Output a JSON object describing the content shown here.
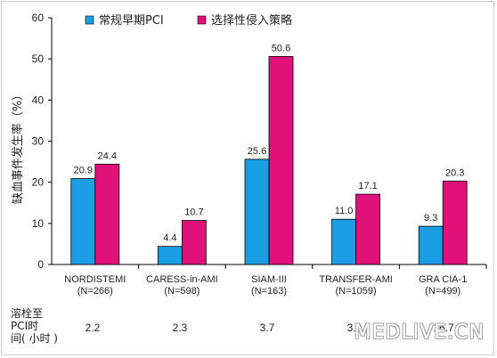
{
  "chart_data": {
    "type": "bar",
    "ylabel": "缺血事件发生率（%）",
    "ylim": [
      0,
      60
    ],
    "yticks": [
      0,
      10,
      20,
      30,
      40,
      50,
      60
    ],
    "categories": [
      [
        "NORDISTEMI",
        "(N=266)"
      ],
      [
        "CARESS-in-AMI",
        "(N=598)"
      ],
      [
        "SIAM-III",
        "(N=163)"
      ],
      [
        "TRANSFER-AMI",
        "(N=1059)"
      ],
      [
        "GRA CIA-1",
        "(N=499)"
      ]
    ],
    "series": [
      {
        "name": "常规早期PCI",
        "color": "#1b9ee3",
        "values": [
          20.9,
          4.4,
          25.6,
          11.0,
          9.3
        ]
      },
      {
        "name": "选择性侵入策略",
        "color": "#e0127a",
        "values": [
          24.4,
          10.7,
          50.6,
          17.1,
          20.3
        ]
      }
    ],
    "legend_position": "top",
    "grid": false
  },
  "time_row": {
    "label_lines": [
      "溶栓至",
      "PCI时",
      "间( 小时 )"
    ],
    "values": [
      "2.2",
      "2.3",
      "3.7",
      "3.9",
      "16.7"
    ]
  },
  "watermark": "MEDLIVE.CN"
}
